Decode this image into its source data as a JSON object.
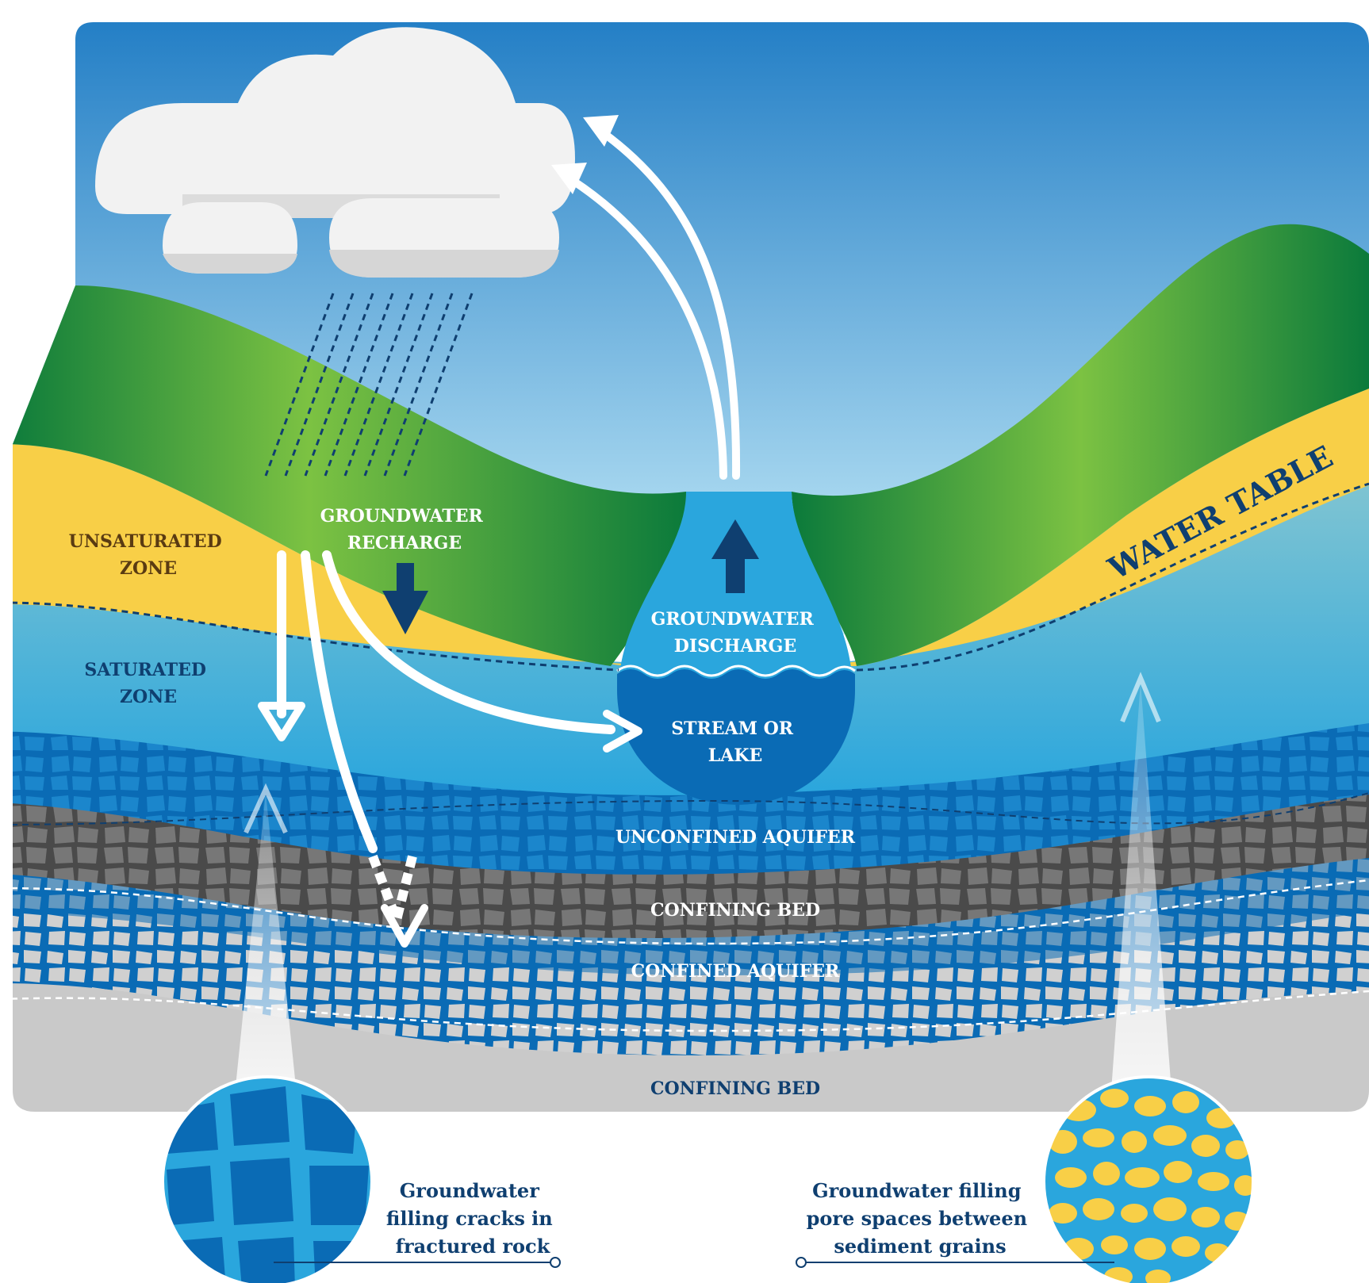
{
  "labels": {
    "unsaturated_zone": [
      "UNSATURATED",
      "ZONE"
    ],
    "saturated_zone": [
      "SATURATED",
      "ZONE"
    ],
    "groundwater_recharge": [
      "GROUNDWATER",
      "RECHARGE"
    ],
    "groundwater_discharge": [
      "GROUNDWATER",
      "DISCHARGE"
    ],
    "stream_or_lake": [
      "STREAM OR",
      "LAKE"
    ],
    "water_table": "WATER TABLE",
    "unconfined_aquifer": "UNCONFINED AQUIFER",
    "confining_bed_upper": "CONFINING BED",
    "confined_aquifer": "CONFINED AQUIFER",
    "confining_bed_lower": "CONFINING BED"
  },
  "callouts": {
    "fractured_rock": [
      "Groundwater",
      "filling cracks in",
      "fractured rock"
    ],
    "sediment_grains": [
      "Groundwater filling",
      "pore spaces between",
      "sediment grains"
    ]
  },
  "colors": {
    "sky_top": "#1e7bc4",
    "sky_bottom": "#c9eefa",
    "hill_dark": "#0b7a3b",
    "hill_light": "#7cc242",
    "unsaturated": "#f8cf47",
    "saturated": "#2aa6dd",
    "aquifer": "#0a6bb5",
    "confining": "#5b5b5b",
    "bedrock": "#c9c9c9",
    "label_brown": "#5a3b12",
    "label_navy": "#0f3f70"
  }
}
